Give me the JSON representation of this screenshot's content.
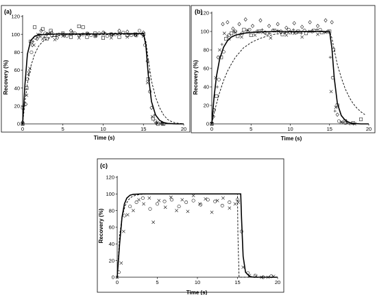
{
  "figure": {
    "panels": [
      {
        "id": "a",
        "label": "(a)",
        "xlabel": "Time (s)",
        "ylabel": "Recovery (%)",
        "xlim": [
          0,
          20
        ],
        "ylim": [
          0,
          120
        ],
        "xticks": [
          "0",
          "5",
          "10",
          "15",
          "20"
        ],
        "yticks": [
          "0",
          "20",
          "40",
          "60",
          "80",
          "100",
          "120"
        ]
      },
      {
        "id": "b",
        "label": "(b)",
        "xlabel": "Time (s)",
        "ylabel": "Recovery (%)",
        "xlim": [
          0,
          20
        ],
        "ylim": [
          0,
          120
        ],
        "xticks": [
          "0",
          "5",
          "10",
          "15",
          "20"
        ],
        "yticks": [
          "0",
          "20",
          "40",
          "60",
          "80",
          "100",
          "120"
        ]
      },
      {
        "id": "c",
        "label": "(c)",
        "xlabel": "Time (s)",
        "ylabel": "Recovery (%)",
        "xlim": [
          0,
          20
        ],
        "ylim": [
          0,
          120
        ],
        "xticks": [
          "0",
          "5",
          "10",
          "15",
          "20"
        ],
        "yticks": [
          "0",
          "20",
          "40",
          "60",
          "80",
          "100",
          "120"
        ]
      }
    ]
  },
  "chart_data": [
    {
      "type": "scatter",
      "panel": "a",
      "title": "(a)",
      "xlabel": "Time (s)",
      "ylabel": "Recovery (%)",
      "xlim": [
        0,
        20
      ],
      "ylim": [
        0,
        120
      ],
      "legend": "none",
      "grid": false,
      "series": [
        {
          "marker": "square",
          "x": [
            0,
            0.5,
            1,
            1.5,
            2,
            2.5,
            3,
            3.5,
            4,
            5,
            6,
            7,
            7.5,
            8,
            9,
            10,
            11,
            12,
            13,
            14,
            15,
            15.6,
            16.2,
            16.8,
            17.5
          ],
          "y": [
            0,
            40,
            92,
            108,
            98,
            106,
            95,
            104,
            99,
            101,
            97,
            109,
            108,
            97,
            101,
            96,
            100,
            97,
            99,
            100,
            100,
            50,
            6,
            0,
            0
          ]
        },
        {
          "marker": "diamond",
          "x": [
            0,
            0.4,
            0.8,
            1.2,
            1.8,
            2.3,
            3,
            3.6,
            4.3,
            5,
            6,
            7,
            8,
            9,
            10,
            11,
            12,
            13,
            14,
            15,
            15.5,
            16,
            16.6
          ],
          "y": [
            2,
            22,
            58,
            88,
            95,
            104,
            100,
            102,
            96,
            100,
            104,
            99,
            101,
            98,
            102,
            100,
            104,
            103,
            99,
            102,
            70,
            18,
            1
          ]
        },
        {
          "marker": "cross",
          "x": [
            0,
            0.5,
            0.9,
            1.4,
            1.9,
            2.5,
            3.2,
            4,
            5,
            6,
            7,
            8,
            9,
            10,
            11,
            12,
            13,
            14,
            15,
            15.5,
            16.1,
            16.7,
            17.4
          ],
          "y": [
            0,
            32,
            62,
            88,
            100,
            95,
            101,
            94,
            98,
            100,
            96,
            101,
            98,
            100,
            96,
            101,
            97,
            100,
            98,
            46,
            8,
            1,
            0
          ]
        },
        {
          "marker": "circle",
          "x": [
            0,
            0.6,
            1.1,
            1.6,
            2.2,
            2.8,
            3.6,
            4.5,
            5.5,
            6.5,
            7.5,
            8.5,
            9.5,
            10.5,
            11.5,
            12.5,
            13.5,
            14.5,
            15.2,
            15.8,
            16.5,
            17.3
          ],
          "y": [
            18,
            50,
            80,
            96,
            99,
            101,
            99,
            100,
            98,
            101,
            100,
            99,
            101,
            98,
            100,
            102,
            99,
            104,
            88,
            36,
            3,
            0
          ]
        },
        {
          "marker": "plus",
          "x": [
            0,
            0.7,
            1.3,
            2,
            2.7,
            3.4,
            4.2,
            5.2,
            6.2,
            7.2,
            8.2,
            9.2,
            10.2,
            11.2,
            12.2,
            13.2,
            14.2,
            15,
            15.7,
            16.4,
            17.2
          ],
          "y": [
            0,
            55,
            92,
            99,
            97,
            101,
            100,
            98,
            103,
            99,
            101,
            98,
            102,
            99,
            101,
            100,
            98,
            99,
            58,
            10,
            1
          ]
        }
      ],
      "curves": [
        {
          "style": "solid",
          "x": [
            0,
            0.3,
            0.6,
            1,
            1.5,
            2,
            3,
            5,
            10,
            15,
            15.3,
            15.6,
            16,
            16.5,
            17,
            17.5,
            18,
            19,
            20
          ],
          "y": [
            0,
            45,
            78,
            93,
            98,
            99.5,
            100,
            100.5,
            100.5,
            101,
            88,
            55,
            25,
            10,
            4,
            1.5,
            0.5,
            0,
            0
          ]
        },
        {
          "style": "dashed",
          "x": [
            0,
            0.3,
            0.6,
            1,
            1.5,
            2,
            2.5,
            3,
            4,
            5,
            10,
            15,
            15.3,
            15.6,
            16,
            16.5,
            17,
            17.5,
            18,
            18.5,
            19,
            19.5,
            20
          ],
          "y": [
            0,
            25,
            45,
            64,
            78,
            87,
            92,
            95,
            98,
            99.5,
            100,
            100,
            92,
            72,
            48,
            30,
            18,
            10,
            5,
            2.5,
            1,
            0.5,
            0
          ]
        }
      ]
    },
    {
      "type": "scatter",
      "panel": "b",
      "title": "(b)",
      "xlabel": "Time (s)",
      "ylabel": "Recovery (%)",
      "xlim": [
        0,
        20
      ],
      "ylim": [
        0,
        120
      ],
      "legend": "none",
      "grid": false,
      "series": [
        {
          "marker": "square",
          "x": [
            0,
            0.6,
            1.2,
            1.8,
            2.5,
            3.3,
            4.1,
            5,
            6,
            7,
            8,
            9,
            10,
            11,
            12,
            13,
            14,
            15,
            15.5,
            16,
            17,
            18,
            19
          ],
          "y": [
            0,
            30,
            72,
            92,
            98,
            95,
            102,
            96,
            100,
            98,
            101,
            97,
            99,
            100,
            98,
            101,
            99,
            100,
            80,
            20,
            3,
            1,
            5
          ]
        },
        {
          "marker": "diamond",
          "x": [
            0.2,
            0.8,
            1.4,
            2,
            2.7,
            3.5,
            4.3,
            5.2,
            6.2,
            7.3,
            8.4,
            9.5,
            10.5,
            11.5,
            12.5,
            13.5,
            14.5,
            15.3,
            16
          ],
          "y": [
            8,
            72,
            108,
            110,
            103,
            108,
            113,
            106,
            112,
            106,
            108,
            104,
            109,
            105,
            110,
            106,
            112,
            110,
            10
          ]
        },
        {
          "marker": "cross",
          "x": [
            0,
            0.5,
            1,
            1.6,
            2.2,
            3,
            3.8,
            4.6,
            5.5,
            6.5,
            7.5,
            8.5,
            9.5,
            10.5,
            11.5,
            12.5,
            13.5,
            14.5,
            15.2,
            15.8,
            16.5,
            17.3,
            18.2
          ],
          "y": [
            0,
            50,
            80,
            98,
            92,
            99,
            94,
            101,
            96,
            99,
            93,
            100,
            96,
            98,
            94,
            100,
            97,
            99,
            35,
            18,
            2,
            1,
            0
          ]
        },
        {
          "marker": "circle",
          "x": [
            0.3,
            0.9,
            1.5,
            2.2,
            3,
            3.9,
            4.8,
            5.8,
            6.8,
            7.8,
            8.8,
            9.8,
            10.8,
            11.8,
            12.8,
            13.8,
            14.8,
            15.4,
            16.2,
            17
          ],
          "y": [
            15,
            48,
            78,
            96,
            100,
            98,
            102,
            100,
            99,
            101,
            100,
            102,
            99,
            101,
            100,
            102,
            100,
            50,
            3,
            1
          ]
        },
        {
          "marker": "plus",
          "x": [
            0,
            0.7,
            1.3,
            2,
            2.8,
            3.6,
            4.5,
            5.4,
            6.4,
            7.4,
            8.4,
            9.4,
            10.4,
            11.4,
            12.4,
            13.4,
            14.4,
            15.1,
            15.7,
            16.6,
            17.6
          ],
          "y": [
            2,
            40,
            86,
            95,
            100,
            97,
            101,
            99,
            102,
            98,
            101,
            99,
            102,
            98,
            100,
            102,
            99,
            72,
            14,
            2,
            0
          ]
        }
      ],
      "curves": [
        {
          "style": "solid",
          "x": [
            0,
            0.3,
            0.6,
            1,
            1.5,
            2,
            2.5,
            3,
            4,
            5,
            6,
            8,
            10,
            15,
            15.3,
            15.6,
            16,
            16.5,
            17,
            17.5,
            18,
            19,
            20
          ],
          "y": [
            0,
            30,
            52,
            70,
            83,
            90,
            94,
            96,
            98,
            99,
            99.5,
            100,
            100,
            100,
            82,
            50,
            22,
            9,
            4,
            1.5,
            0.5,
            0,
            0
          ]
        },
        {
          "style": "dashed",
          "x": [
            0,
            0.3,
            0.6,
            1,
            1.5,
            2,
            2.5,
            3,
            4,
            5,
            6,
            7,
            8,
            10,
            12,
            15,
            15.3,
            15.6,
            16,
            16.5,
            17,
            17.5,
            18,
            18.5,
            19,
            19.5
          ],
          "y": [
            0,
            12,
            22,
            34,
            47,
            57,
            65,
            72,
            82,
            88,
            92,
            95,
            97,
            99,
            99.5,
            100,
            93,
            80,
            64,
            50,
            38,
            29,
            22,
            17,
            13,
            10
          ]
        }
      ]
    },
    {
      "type": "scatter",
      "panel": "c",
      "title": "(c)",
      "xlabel": "Time (s)",
      "ylabel": "Recovery (%)",
      "xlim": [
        0,
        20
      ],
      "ylim": [
        0,
        120
      ],
      "legend": "none",
      "grid": false,
      "series": [
        {
          "marker": "cross",
          "x": [
            0,
            0.5,
            0.8,
            1.3,
            2,
            2.7,
            3.3,
            4,
            4.5,
            5.2,
            6,
            6.7,
            7.4,
            8.1,
            8.8,
            9.5,
            10.3,
            11,
            11.8,
            12.5,
            13.2,
            14,
            14.7,
            15.1,
            15.7,
            16.5,
            17.3,
            18,
            18.8,
            19.5
          ],
          "y": [
            0,
            17,
            55,
            75,
            80,
            93,
            88,
            95,
            66,
            92,
            84,
            96,
            80,
            93,
            79,
            98,
            88,
            94,
            78,
            92,
            95,
            83,
            88,
            90,
            12,
            2,
            1,
            0,
            0,
            1
          ]
        },
        {
          "marker": "circle",
          "x": [
            0.2,
            0.9,
            1.6,
            2.4,
            3.2,
            4.1,
            5,
            5.9,
            6.8,
            7.7,
            8.6,
            9.5,
            10.4,
            11.3,
            12.2,
            13.1,
            14,
            15,
            15.5,
            16.3,
            17.2,
            18.2,
            19.2
          ],
          "y": [
            6,
            74,
            85,
            90,
            95,
            82,
            88,
            91,
            93,
            85,
            90,
            92,
            87,
            93,
            91,
            86,
            90,
            93,
            55,
            5,
            2,
            0,
            1
          ]
        }
      ],
      "curves": [
        {
          "style": "solid",
          "x": [
            0,
            0.3,
            0.6,
            0.9,
            1.2,
            1.6,
            2,
            3,
            5,
            10,
            15.4,
            15.5,
            15.7,
            16,
            16.5,
            17,
            20
          ],
          "y": [
            0,
            40,
            72,
            88,
            95,
            98.5,
            99.5,
            100,
            100,
            100,
            100,
            70,
            25,
            6,
            1,
            0,
            0
          ]
        },
        {
          "style": "dashed",
          "x": [
            0,
            0.3,
            0.6,
            1,
            1.4,
            1.8,
            2.3,
            3,
            4,
            6,
            10,
            15,
            15.05,
            15.2,
            20
          ],
          "y": [
            0,
            50,
            72,
            86,
            93,
            96.5,
            98.5,
            99.5,
            100,
            100,
            100,
            100,
            50,
            0,
            0
          ]
        }
      ]
    }
  ]
}
